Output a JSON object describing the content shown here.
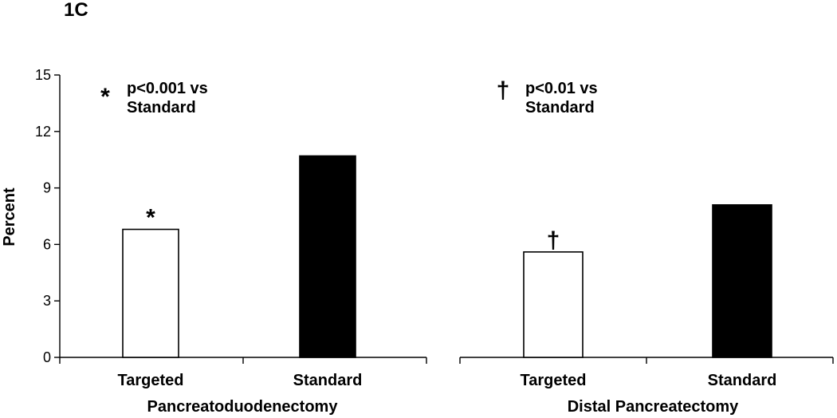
{
  "panel_label": "1C",
  "chart_data": [
    {
      "type": "bar",
      "group_label": "Pancreatoduodenectomy",
      "ylabel": "Percent",
      "ylim": [
        0,
        15
      ],
      "yticks": [
        0,
        3,
        6,
        9,
        12,
        15
      ],
      "categories": [
        "Targeted",
        "Standard"
      ],
      "values": [
        6.8,
        10.7
      ],
      "bar_colors": [
        "#ffffff",
        "#000000"
      ],
      "markers": [
        "*",
        ""
      ],
      "note": {
        "symbol": "*",
        "line1": "p<0.001 vs",
        "line2": "Standard"
      }
    },
    {
      "type": "bar",
      "group_label": "Distal Pancreatectomy",
      "ylim": [
        0,
        15
      ],
      "categories": [
        "Targeted",
        "Standard"
      ],
      "values": [
        5.6,
        8.1
      ],
      "bar_colors": [
        "#ffffff",
        "#000000"
      ],
      "markers": [
        "†",
        ""
      ],
      "note": {
        "symbol": "†",
        "line1": "p<0.01 vs",
        "line2": "Standard"
      }
    }
  ]
}
